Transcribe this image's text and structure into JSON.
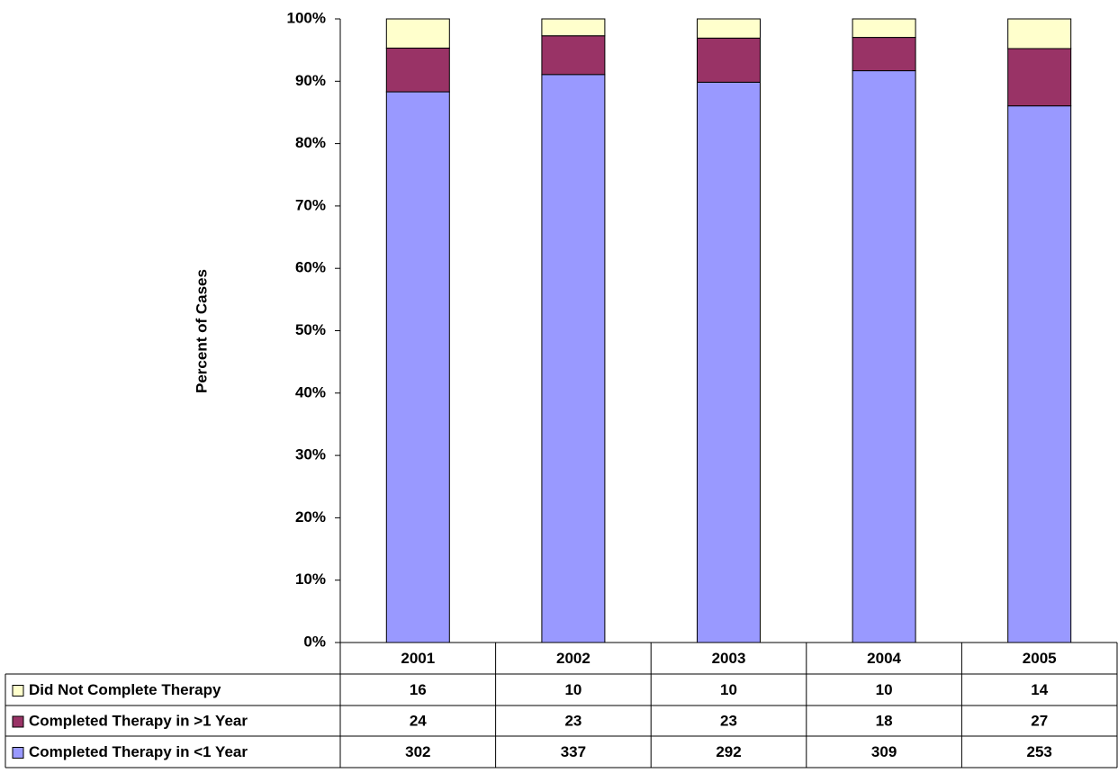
{
  "chart_data": {
    "type": "bar",
    "stacking": "percent",
    "y_label": "Percent of Cases",
    "categories": [
      "2001",
      "2002",
      "2003",
      "2004",
      "2005"
    ],
    "series": [
      {
        "name": "Did Not Complete Therapy",
        "color": "#ffffcc",
        "values": [
          16,
          10,
          10,
          10,
          14
        ]
      },
      {
        "name": "Completed Therapy in >1 Year",
        "color": "#993366",
        "values": [
          24,
          23,
          23,
          18,
          27
        ]
      },
      {
        "name": "Completed Therapy in <1 Year",
        "color": "#9999ff",
        "values": [
          302,
          337,
          292,
          309,
          253
        ]
      }
    ],
    "ylim": [
      0,
      100
    ],
    "yticks": [
      {
        "value": 0,
        "label": "0%"
      },
      {
        "value": 10,
        "label": "10%"
      },
      {
        "value": 20,
        "label": "20%"
      },
      {
        "value": 30,
        "label": "30%"
      },
      {
        "value": 40,
        "label": "40%"
      },
      {
        "value": 50,
        "label": "50%"
      },
      {
        "value": 60,
        "label": "60%"
      },
      {
        "value": 70,
        "label": "70%"
      },
      {
        "value": 80,
        "label": "80%"
      },
      {
        "value": 90,
        "label": "90%"
      },
      {
        "value": 100,
        "label": "100%"
      }
    ],
    "grid": false,
    "data_table": true
  }
}
